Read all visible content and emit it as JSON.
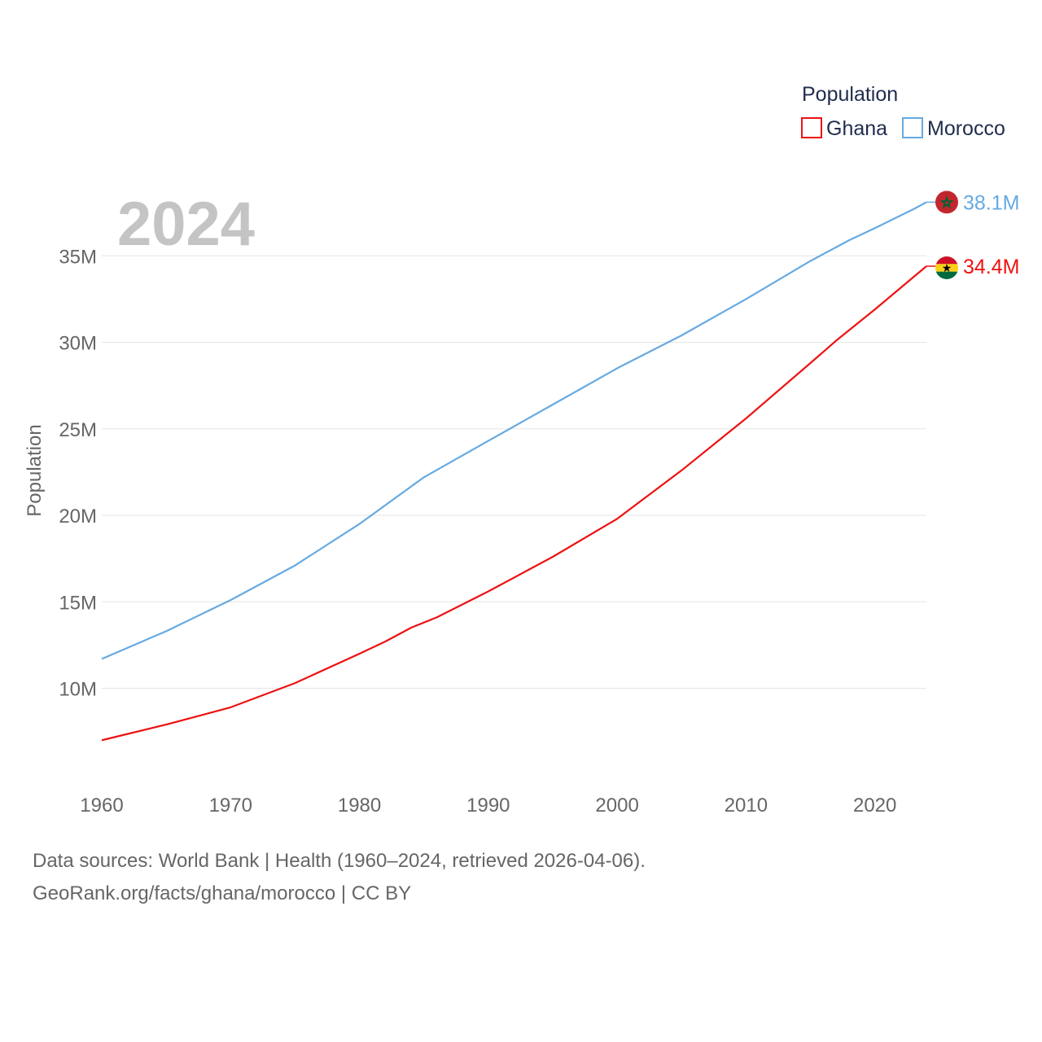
{
  "chart_data": {
    "type": "line",
    "title": "",
    "xlabel": "",
    "ylabel": "Population",
    "year_label": "2024",
    "xlim": [
      1960,
      2024
    ],
    "ylim": [
      4000000,
      40000000
    ],
    "x_ticks": [
      1960,
      1970,
      1980,
      1990,
      2000,
      2010,
      2020
    ],
    "y_ticks": [
      {
        "value": 10000000,
        "label": "10M"
      },
      {
        "value": 15000000,
        "label": "15M"
      },
      {
        "value": 20000000,
        "label": "20M"
      },
      {
        "value": 25000000,
        "label": "25M"
      },
      {
        "value": 30000000,
        "label": "30M"
      },
      {
        "value": 35000000,
        "label": "35M"
      }
    ],
    "legend": {
      "title": "Population",
      "position": "top-right"
    },
    "series": [
      {
        "name": "Ghana",
        "color": "#ee1111",
        "end_label": "34.4M",
        "flag": "ghana-flag-icon",
        "x": [
          1960,
          1965,
          1970,
          1975,
          1980,
          1982,
          1984,
          1986,
          1990,
          1995,
          2000,
          2005,
          2010,
          2015,
          2017,
          2020,
          2024
        ],
        "values": [
          7000000,
          7900000,
          8900000,
          10300000,
          12000000,
          12700000,
          13500000,
          14100000,
          15600000,
          17600000,
          19800000,
          22600000,
          25600000,
          28800000,
          30100000,
          31900000,
          34400000
        ]
      },
      {
        "name": "Morocco",
        "color": "#66aae2",
        "end_label": "38.1M",
        "flag": "morocco-flag-icon",
        "x": [
          1960,
          1965,
          1970,
          1975,
          1980,
          1985,
          1990,
          1995,
          2000,
          2005,
          2010,
          2015,
          2018,
          2020,
          2023,
          2024
        ],
        "values": [
          11700000,
          13300000,
          15100000,
          17100000,
          19500000,
          22200000,
          24300000,
          26400000,
          28500000,
          30400000,
          32500000,
          34700000,
          35900000,
          36600000,
          37700000,
          38100000
        ]
      }
    ]
  },
  "footer": {
    "line1": "Data sources: World Bank | Health (1960–2024, retrieved 2026-04-06).",
    "line2": "GeoRank.org/facts/ghana/morocco | CC BY"
  }
}
